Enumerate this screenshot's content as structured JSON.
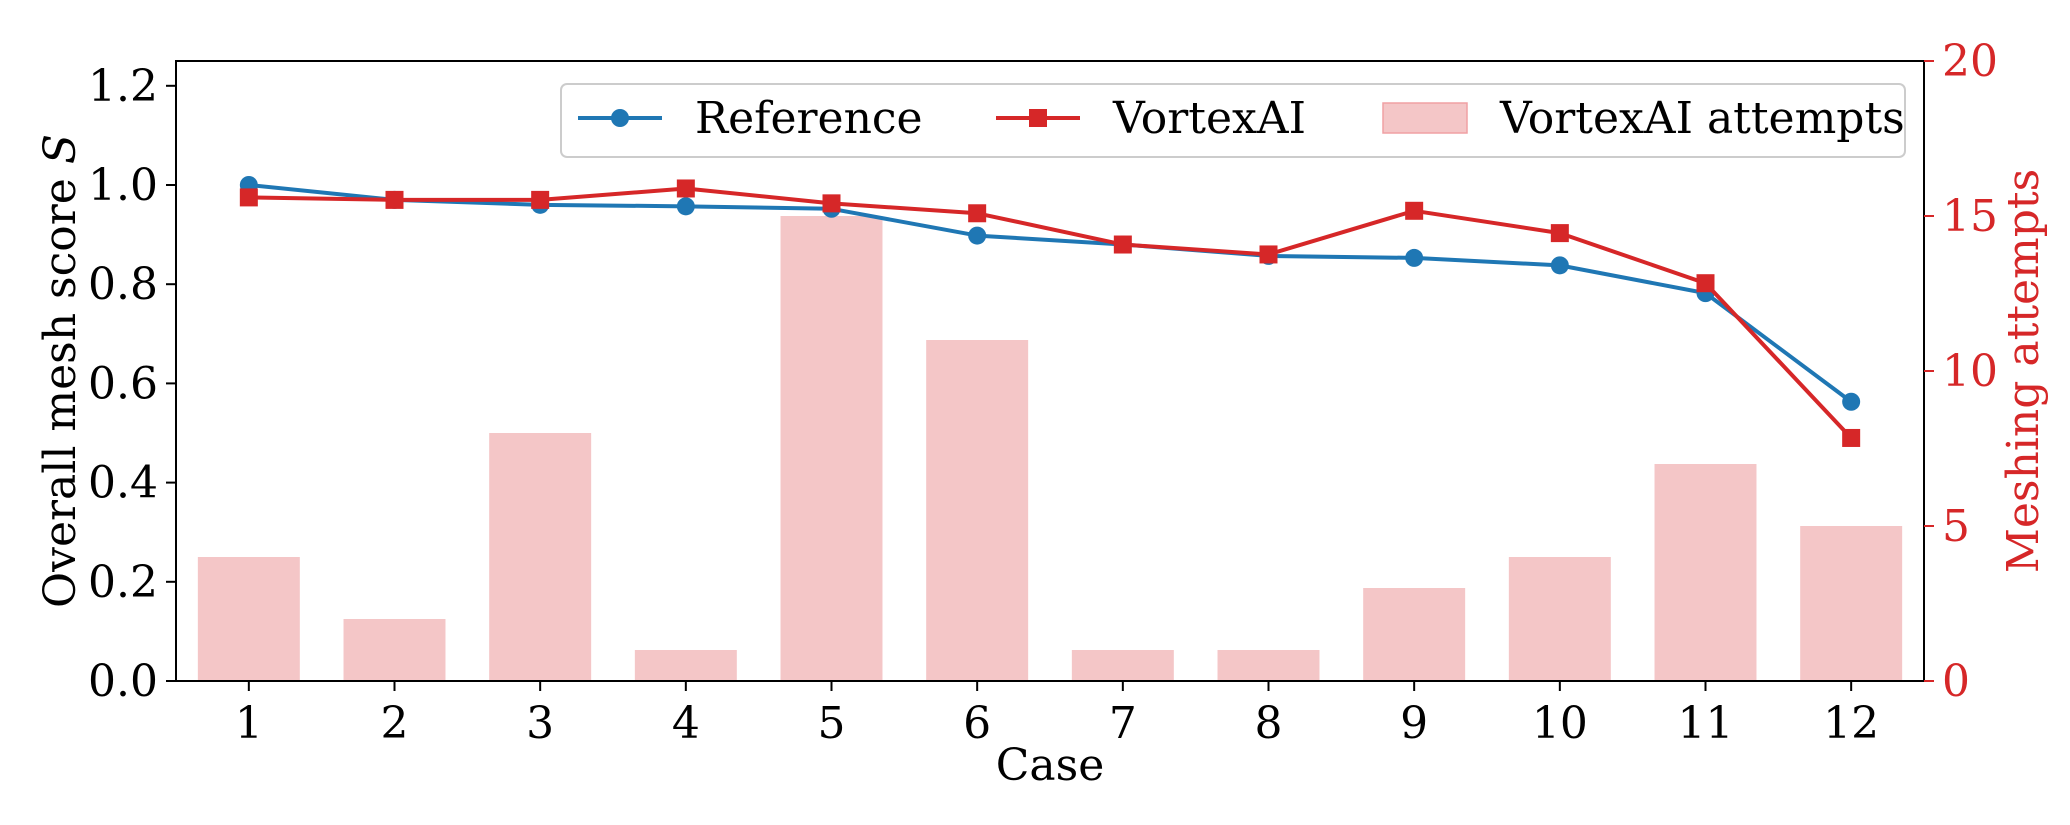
{
  "chart_data": {
    "type": "bar+line",
    "categories": [
      "1",
      "2",
      "3",
      "4",
      "5",
      "6",
      "7",
      "8",
      "9",
      "10",
      "11",
      "12"
    ],
    "xlabel": "Case",
    "ylabel_left": "Overall mesh score",
    "ylabel_left_symbol": "S",
    "ylabel_right": "Meshing attempts",
    "ylim_left": [
      0,
      1.25
    ],
    "yticks_left": [
      "0.0",
      "0.2",
      "0.4",
      "0.6",
      "0.8",
      "1.0",
      "1.2"
    ],
    "ylim_right": [
      0,
      20
    ],
    "yticks_right": [
      "0",
      "5",
      "10",
      "15",
      "20"
    ],
    "grid": false,
    "legend_position": "top-right",
    "series": [
      {
        "name": "Reference",
        "kind": "line",
        "axis": "left",
        "marker": "circle",
        "color": "#1f77b4",
        "values": [
          1.0,
          0.97,
          0.96,
          0.957,
          0.952,
          0.898,
          0.88,
          0.857,
          0.853,
          0.838,
          0.782,
          0.563
        ]
      },
      {
        "name": "VortexAI",
        "kind": "line",
        "axis": "left",
        "marker": "square",
        "color": "#d62728",
        "values": [
          0.975,
          0.97,
          0.97,
          0.993,
          0.963,
          0.943,
          0.88,
          0.86,
          0.948,
          0.903,
          0.802,
          0.49
        ]
      },
      {
        "name": "VortexAI attempts",
        "kind": "bar",
        "axis": "right",
        "color": "#f4c6c7",
        "values": [
          4,
          2,
          8,
          1,
          15,
          11,
          1,
          1,
          3,
          4,
          7,
          5
        ]
      }
    ]
  }
}
